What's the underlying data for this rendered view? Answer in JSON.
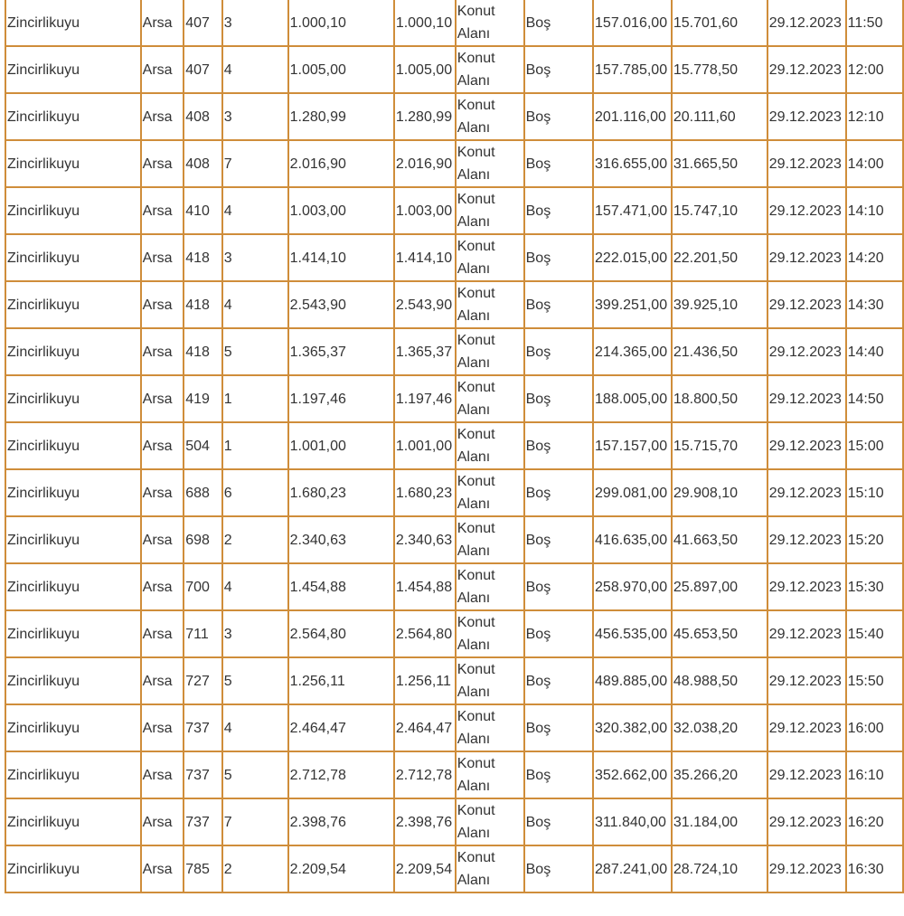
{
  "colors": {
    "border": "#cf8d3a",
    "text": "#333333"
  },
  "rows": [
    [
      "Zincirlikuyu",
      "Arsa",
      "407",
      "3",
      "1.000,10",
      "1.000,10",
      "Konut Alanı",
      "Boş",
      "157.016,00",
      "15.701,60",
      "29.12.2023",
      "11:50"
    ],
    [
      "Zincirlikuyu",
      "Arsa",
      "407",
      "4",
      "1.005,00",
      "1.005,00",
      "Konut Alanı",
      "Boş",
      "157.785,00",
      "15.778,50",
      "29.12.2023",
      "12:00"
    ],
    [
      "Zincirlikuyu",
      "Arsa",
      "408",
      "3",
      "1.280,99",
      "1.280,99",
      "Konut Alanı",
      "Boş",
      "201.116,00",
      "20.111,60",
      "29.12.2023",
      "12:10"
    ],
    [
      "Zincirlikuyu",
      "Arsa",
      "408",
      "7",
      "2.016,90",
      "2.016,90",
      "Konut Alanı",
      "Boş",
      "316.655,00",
      "31.665,50",
      "29.12.2023",
      "14:00"
    ],
    [
      "Zincirlikuyu",
      "Arsa",
      "410",
      "4",
      "1.003,00",
      "1.003,00",
      "Konut Alanı",
      "Boş",
      "157.471,00",
      "15.747,10",
      "29.12.2023",
      "14:10"
    ],
    [
      "Zincirlikuyu",
      "Arsa",
      "418",
      "3",
      "1.414,10",
      "1.414,10",
      "Konut Alanı",
      "Boş",
      "222.015,00",
      "22.201,50",
      "29.12.2023",
      "14:20"
    ],
    [
      "Zincirlikuyu",
      "Arsa",
      "418",
      "4",
      "2.543,90",
      "2.543,90",
      "Konut Alanı",
      "Boş",
      "399.251,00",
      "39.925,10",
      "29.12.2023",
      "14:30"
    ],
    [
      "Zincirlikuyu",
      "Arsa",
      "418",
      "5",
      "1.365,37",
      "1.365,37",
      "Konut Alanı",
      "Boş",
      "214.365,00",
      "21.436,50",
      "29.12.2023",
      "14:40"
    ],
    [
      "Zincirlikuyu",
      "Arsa",
      "419",
      "1",
      "1.197,46",
      "1.197,46",
      "Konut Alanı",
      "Boş",
      "188.005,00",
      "18.800,50",
      "29.12.2023",
      "14:50"
    ],
    [
      "Zincirlikuyu",
      "Arsa",
      "504",
      "1",
      "1.001,00",
      "1.001,00",
      "Konut Alanı",
      "Boş",
      "157.157,00",
      "15.715,70",
      "29.12.2023",
      "15:00"
    ],
    [
      "Zincirlikuyu",
      "Arsa",
      "688",
      "6",
      "1.680,23",
      "1.680,23",
      "Konut Alanı",
      "Boş",
      "299.081,00",
      "29.908,10",
      "29.12.2023",
      "15:10"
    ],
    [
      "Zincirlikuyu",
      "Arsa",
      "698",
      "2",
      "2.340,63",
      "2.340,63",
      "Konut Alanı",
      "Boş",
      "416.635,00",
      "41.663,50",
      "29.12.2023",
      "15:20"
    ],
    [
      "Zincirlikuyu",
      "Arsa",
      "700",
      "4",
      "1.454,88",
      "1.454,88",
      "Konut Alanı",
      "Boş",
      "258.970,00",
      "25.897,00",
      "29.12.2023",
      "15:30"
    ],
    [
      "Zincirlikuyu",
      "Arsa",
      "711",
      "3",
      "2.564,80",
      "2.564,80",
      "Konut Alanı",
      "Boş",
      "456.535,00",
      "45.653,50",
      "29.12.2023",
      "15:40"
    ],
    [
      "Zincirlikuyu",
      "Arsa",
      "727",
      "5",
      "1.256,11",
      "1.256,11",
      "Konut Alanı",
      "Boş",
      "489.885,00",
      "48.988,50",
      "29.12.2023",
      "15:50"
    ],
    [
      "Zincirlikuyu",
      "Arsa",
      "737",
      "4",
      "2.464,47",
      "2.464,47",
      "Konut Alanı",
      "Boş",
      "320.382,00",
      "32.038,20",
      "29.12.2023",
      "16:00"
    ],
    [
      "Zincirlikuyu",
      "Arsa",
      "737",
      "5",
      "2.712,78",
      "2.712,78",
      "Konut Alanı",
      "Boş",
      "352.662,00",
      "35.266,20",
      "29.12.2023",
      "16:10"
    ],
    [
      "Zincirlikuyu",
      "Arsa",
      "737",
      "7",
      "2.398,76",
      "2.398,76",
      "Konut Alanı",
      "Boş",
      "311.840,00",
      "31.184,00",
      "29.12.2023",
      "16:20"
    ],
    [
      "Zincirlikuyu",
      "Arsa",
      "785",
      "2",
      "2.209,54",
      "2.209,54",
      "Konut Alanı",
      "Boş",
      "287.241,00",
      "28.724,10",
      "29.12.2023",
      "16:30"
    ]
  ]
}
